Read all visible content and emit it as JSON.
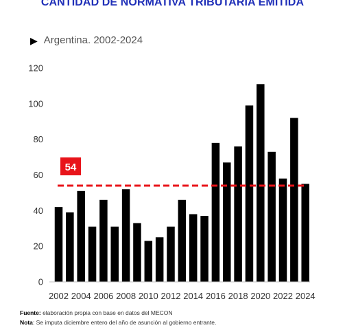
{
  "title": "CANTIDAD DE NORMATIVA TRIBUTARIA EMITIDA",
  "subtitle": "Argentina. 2002-2024",
  "footer": {
    "source_label": "Fuente:",
    "source_text": " elaboración propia con base en datos del MECON",
    "note_label": "Nota",
    "note_text": ": Se imputa diciembre entero del año de asunción al gobierno entrante."
  },
  "colors": {
    "bar": "#000000",
    "reference_line": "#e8141a",
    "reference_badge": "#e8141a",
    "title": "#1f2fb8"
  },
  "chart_data": {
    "type": "bar",
    "categories": [
      "2002",
      "2003",
      "2004",
      "2005",
      "2006",
      "2007",
      "2008",
      "2009",
      "2010",
      "2011",
      "2012",
      "2013",
      "2014",
      "2015",
      "2016",
      "2017",
      "2018",
      "2019",
      "2020",
      "2021",
      "2022",
      "2023",
      "2024"
    ],
    "values": [
      42,
      39,
      51,
      31,
      46,
      31,
      52,
      33,
      23,
      25,
      31,
      46,
      38,
      37,
      78,
      67,
      76,
      99,
      111,
      73,
      58,
      92,
      55
    ],
    "x_tick_labels": [
      "2002",
      "2004",
      "2006",
      "2008",
      "2010",
      "2012",
      "2014",
      "2016",
      "2018",
      "2020",
      "2022",
      "2024"
    ],
    "y_ticks": [
      0,
      20,
      40,
      60,
      80,
      100,
      120
    ],
    "ylim": [
      0,
      120
    ],
    "reference_line": {
      "value": 54,
      "label": "54",
      "style": "dashed"
    },
    "grid": false,
    "legend": "none"
  }
}
